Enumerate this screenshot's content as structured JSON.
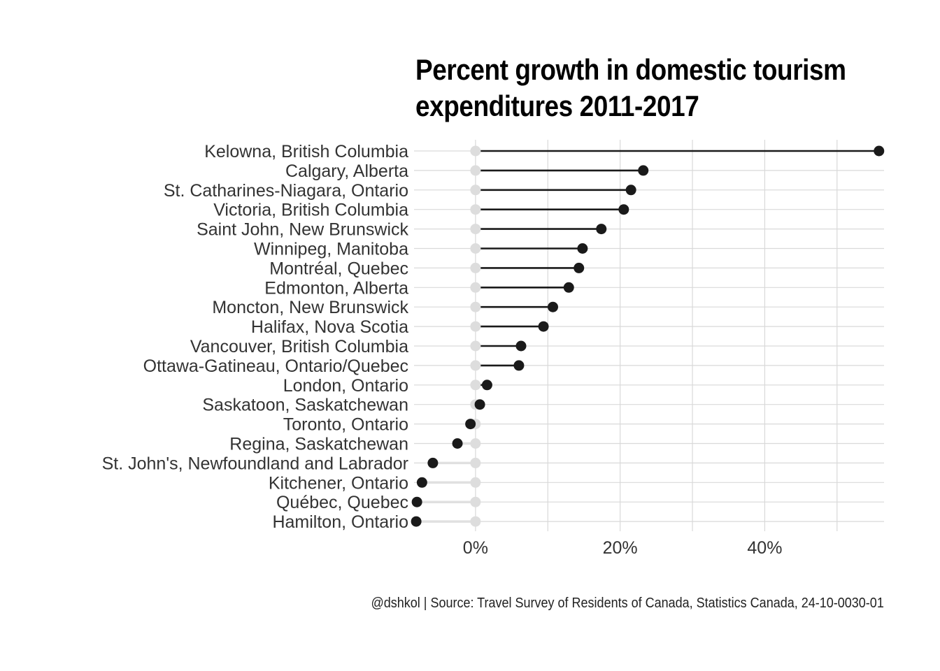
{
  "chart_data": {
    "type": "dumbbell",
    "title_lines": [
      "Percent growth in domestic tourism",
      "expenditures 2011-2017"
    ],
    "caption": "@dshkol | Source: Travel Survey of Residents of Canada, Statistics Canada, 24-10-0030-01",
    "baseline_value": 0,
    "xlim": [
      -0.085,
      0.565
    ],
    "x_ticks": [
      {
        "value": 0,
        "label": "0%"
      },
      {
        "value": 0.2,
        "label": "20%"
      },
      {
        "value": 0.4,
        "label": "40%"
      }
    ],
    "x_minor_ticks": [
      0.1,
      0.3,
      0.5
    ],
    "grid": true,
    "colors": {
      "point": "#1a1a1a",
      "baseline_point": "#dddddd",
      "segment_positive": "#1a1a1a",
      "segment_negative": "#e0e0e0",
      "grid": "#d9d9d9"
    },
    "categories": [
      {
        "label": "Kelowna, British Columbia",
        "value": 0.558
      },
      {
        "label": "Calgary, Alberta",
        "value": 0.232
      },
      {
        "label": "St. Catharines-Niagara, Ontario",
        "value": 0.215
      },
      {
        "label": "Victoria, British Columbia",
        "value": 0.205
      },
      {
        "label": "Saint John, New Brunswick",
        "value": 0.174
      },
      {
        "label": "Winnipeg, Manitoba",
        "value": 0.148
      },
      {
        "label": "Montréal, Quebec",
        "value": 0.143
      },
      {
        "label": "Edmonton, Alberta",
        "value": 0.129
      },
      {
        "label": "Moncton, New Brunswick",
        "value": 0.107
      },
      {
        "label": "Halifax, Nova Scotia",
        "value": 0.094
      },
      {
        "label": "Vancouver, British Columbia",
        "value": 0.063
      },
      {
        "label": "Ottawa-Gatineau, Ontario/Quebec",
        "value": 0.06
      },
      {
        "label": "London, Ontario",
        "value": 0.016
      },
      {
        "label": "Saskatoon, Saskatchewan",
        "value": 0.006
      },
      {
        "label": "Toronto, Ontario",
        "value": -0.007
      },
      {
        "label": "Regina, Saskatchewan",
        "value": -0.025
      },
      {
        "label": "St. John's, Newfoundland and Labrador",
        "value": -0.059
      },
      {
        "label": "Kitchener, Ontario",
        "value": -0.074
      },
      {
        "label": "Québec, Quebec",
        "value": -0.081
      },
      {
        "label": "Hamilton, Ontario",
        "value": -0.082
      }
    ]
  }
}
